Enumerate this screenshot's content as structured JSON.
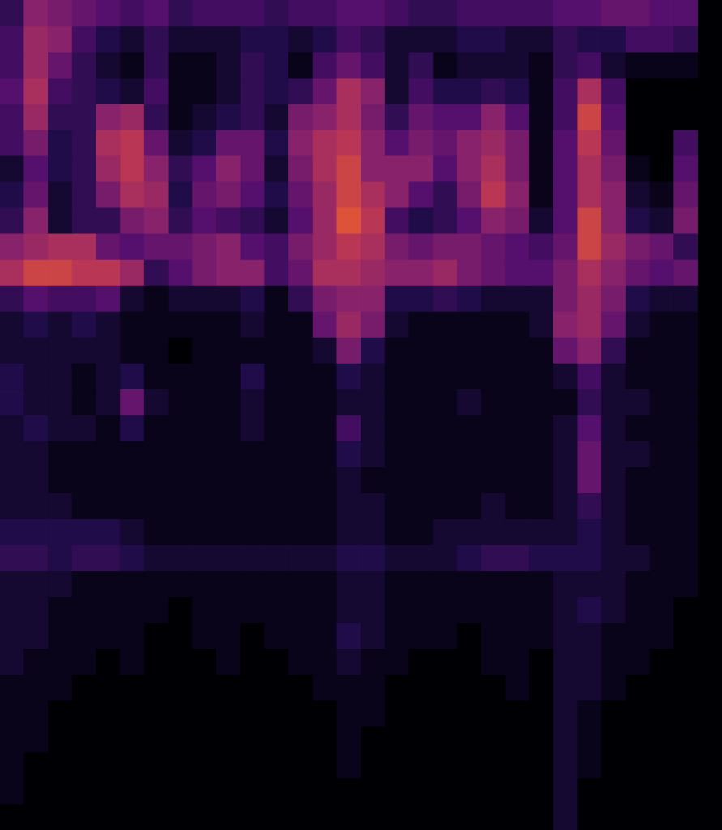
{
  "chart_data": {
    "type": "heatmap",
    "grid": false,
    "tick_labels": false,
    "ylim": [
      0,
      32
    ],
    "zlim": [
      0,
      100
    ],
    "cells": [
      [
        20,
        45,
        40,
        35,
        30,
        25,
        30,
        20,
        25,
        25,
        25,
        20,
        25,
        25,
        30,
        30,
        25,
        20,
        20,
        25,
        25,
        25,
        25,
        30,
        30,
        35,
        35,
        30,
        30,
        0
      ],
      [
        25,
        50,
        45,
        25,
        15,
        10,
        20,
        10,
        10,
        10,
        15,
        15,
        10,
        15,
        25,
        20,
        10,
        10,
        10,
        15,
        15,
        10,
        10,
        20,
        15,
        15,
        25,
        25,
        20,
        0
      ],
      [
        25,
        50,
        35,
        20,
        10,
        5,
        20,
        5,
        5,
        10,
        20,
        15,
        5,
        25,
        35,
        25,
        10,
        20,
        5,
        10,
        10,
        10,
        5,
        20,
        25,
        10,
        5,
        5,
        5,
        0
      ],
      [
        30,
        55,
        25,
        20,
        15,
        10,
        25,
        5,
        5,
        10,
        20,
        15,
        20,
        35,
        55,
        45,
        10,
        25,
        15,
        15,
        20,
        15,
        5,
        25,
        55,
        25,
        0,
        0,
        0,
        0
      ],
      [
        25,
        50,
        20,
        20,
        45,
        50,
        20,
        5,
        10,
        15,
        20,
        10,
        40,
        45,
        55,
        40,
        20,
        35,
        30,
        30,
        45,
        30,
        5,
        25,
        65,
        30,
        0,
        0,
        0,
        0
      ],
      [
        25,
        40,
        15,
        20,
        55,
        60,
        35,
        10,
        15,
        35,
        35,
        15,
        45,
        55,
        60,
        45,
        30,
        40,
        35,
        45,
        50,
        40,
        5,
        30,
        60,
        35,
        0,
        0,
        25,
        0
      ],
      [
        10,
        30,
        15,
        20,
        50,
        60,
        45,
        20,
        30,
        45,
        35,
        10,
        40,
        55,
        65,
        45,
        45,
        45,
        30,
        45,
        55,
        40,
        5,
        30,
        55,
        40,
        5,
        0,
        30,
        0
      ],
      [
        15,
        35,
        10,
        20,
        40,
        55,
        50,
        15,
        35,
        40,
        30,
        15,
        35,
        50,
        65,
        55,
        45,
        30,
        20,
        40,
        60,
        45,
        5,
        30,
        55,
        45,
        10,
        5,
        35,
        0
      ],
      [
        20,
        45,
        10,
        20,
        20,
        40,
        45,
        20,
        30,
        25,
        20,
        10,
        30,
        50,
        70,
        60,
        25,
        15,
        20,
        30,
        45,
        40,
        10,
        30,
        65,
        45,
        15,
        10,
        40,
        0
      ],
      [
        45,
        50,
        55,
        55,
        35,
        30,
        35,
        35,
        40,
        45,
        30,
        25,
        40,
        50,
        60,
        55,
        40,
        35,
        40,
        40,
        35,
        30,
        25,
        35,
        65,
        50,
        40,
        35,
        20,
        0
      ],
      [
        55,
        65,
        65,
        60,
        60,
        50,
        20,
        30,
        40,
        45,
        45,
        25,
        35,
        55,
        55,
        50,
        45,
        45,
        50,
        40,
        35,
        30,
        30,
        40,
        55,
        45,
        35,
        30,
        35,
        0
      ],
      [
        20,
        30,
        25,
        25,
        30,
        10,
        5,
        10,
        10,
        10,
        15,
        5,
        20,
        40,
        45,
        45,
        15,
        15,
        20,
        15,
        10,
        10,
        10,
        40,
        50,
        40,
        15,
        10,
        10,
        0
      ],
      [
        10,
        15,
        10,
        15,
        10,
        5,
        5,
        5,
        5,
        5,
        10,
        5,
        5,
        35,
        50,
        40,
        10,
        5,
        5,
        5,
        5,
        5,
        10,
        45,
        50,
        35,
        10,
        5,
        5,
        0
      ],
      [
        10,
        10,
        10,
        10,
        10,
        5,
        5,
        0,
        5,
        5,
        5,
        5,
        5,
        10,
        40,
        15,
        5,
        5,
        5,
        5,
        5,
        5,
        5,
        35,
        45,
        20,
        5,
        5,
        5,
        0
      ],
      [
        15,
        10,
        10,
        5,
        10,
        15,
        5,
        5,
        5,
        5,
        15,
        5,
        5,
        5,
        15,
        10,
        5,
        5,
        5,
        5,
        5,
        5,
        5,
        10,
        25,
        10,
        5,
        5,
        5,
        0
      ],
      [
        15,
        10,
        10,
        5,
        10,
        35,
        10,
        5,
        5,
        5,
        10,
        5,
        5,
        5,
        10,
        10,
        5,
        5,
        5,
        10,
        5,
        5,
        5,
        5,
        20,
        10,
        10,
        5,
        5,
        0
      ],
      [
        10,
        15,
        10,
        10,
        5,
        15,
        5,
        5,
        5,
        5,
        10,
        5,
        5,
        5,
        25,
        10,
        5,
        5,
        5,
        5,
        5,
        5,
        5,
        10,
        30,
        10,
        5,
        5,
        5,
        0
      ],
      [
        10,
        10,
        5,
        5,
        5,
        5,
        5,
        5,
        5,
        5,
        5,
        5,
        5,
        5,
        15,
        10,
        5,
        5,
        5,
        5,
        5,
        5,
        5,
        10,
        35,
        10,
        10,
        5,
        5,
        0
      ],
      [
        10,
        10,
        5,
        5,
        5,
        5,
        5,
        5,
        5,
        5,
        5,
        5,
        5,
        5,
        10,
        5,
        5,
        5,
        5,
        5,
        5,
        5,
        5,
        10,
        35,
        10,
        5,
        5,
        5,
        0
      ],
      [
        10,
        10,
        10,
        5,
        5,
        5,
        5,
        5,
        5,
        5,
        5,
        5,
        5,
        5,
        10,
        10,
        5,
        5,
        5,
        5,
        10,
        5,
        5,
        10,
        20,
        10,
        5,
        5,
        5,
        0
      ],
      [
        15,
        15,
        15,
        15,
        15,
        10,
        5,
        5,
        5,
        5,
        5,
        5,
        5,
        5,
        10,
        10,
        5,
        5,
        10,
        10,
        10,
        10,
        10,
        10,
        15,
        10,
        5,
        5,
        5,
        0
      ],
      [
        20,
        20,
        15,
        20,
        20,
        15,
        10,
        10,
        10,
        10,
        10,
        10,
        10,
        10,
        15,
        15,
        10,
        10,
        10,
        15,
        20,
        20,
        15,
        15,
        15,
        10,
        10,
        5,
        5,
        0
      ],
      [
        10,
        10,
        10,
        5,
        5,
        5,
        5,
        5,
        5,
        5,
        5,
        5,
        5,
        5,
        10,
        10,
        5,
        5,
        5,
        5,
        5,
        5,
        5,
        10,
        10,
        10,
        5,
        5,
        5,
        0
      ],
      [
        10,
        10,
        5,
        5,
        5,
        5,
        5,
        0,
        5,
        5,
        5,
        5,
        5,
        5,
        10,
        10,
        5,
        5,
        5,
        5,
        5,
        5,
        5,
        10,
        15,
        10,
        5,
        5,
        0,
        0
      ],
      [
        10,
        10,
        5,
        5,
        5,
        5,
        0,
        0,
        5,
        5,
        0,
        5,
        5,
        5,
        15,
        10,
        5,
        5,
        5,
        0,
        5,
        5,
        5,
        10,
        10,
        5,
        5,
        5,
        0,
        0
      ],
      [
        10,
        5,
        5,
        5,
        0,
        5,
        0,
        0,
        0,
        5,
        0,
        0,
        5,
        5,
        10,
        5,
        5,
        0,
        0,
        0,
        5,
        5,
        0,
        10,
        10,
        5,
        5,
        0,
        0,
        0
      ],
      [
        5,
        5,
        5,
        0,
        0,
        0,
        0,
        0,
        0,
        0,
        0,
        0,
        0,
        5,
        5,
        5,
        0,
        0,
        0,
        0,
        0,
        5,
        0,
        10,
        10,
        5,
        0,
        0,
        0,
        0
      ],
      [
        5,
        5,
        0,
        0,
        0,
        0,
        0,
        0,
        0,
        0,
        0,
        0,
        0,
        0,
        5,
        5,
        0,
        0,
        0,
        0,
        0,
        0,
        0,
        10,
        5,
        0,
        0,
        0,
        0,
        0
      ],
      [
        5,
        5,
        0,
        0,
        0,
        0,
        0,
        0,
        0,
        0,
        0,
        0,
        0,
        0,
        5,
        0,
        0,
        0,
        0,
        0,
        0,
        0,
        0,
        10,
        5,
        0,
        0,
        0,
        0,
        0
      ],
      [
        5,
        0,
        0,
        0,
        0,
        0,
        0,
        0,
        0,
        0,
        0,
        0,
        0,
        0,
        5,
        0,
        0,
        0,
        0,
        0,
        0,
        0,
        0,
        10,
        5,
        0,
        0,
        0,
        0,
        0
      ],
      [
        5,
        0,
        0,
        0,
        0,
        0,
        0,
        0,
        0,
        0,
        0,
        0,
        0,
        0,
        0,
        0,
        0,
        0,
        0,
        0,
        0,
        0,
        0,
        10,
        0,
        0,
        0,
        0,
        0,
        0
      ],
      [
        0,
        0,
        0,
        0,
        0,
        0,
        0,
        0,
        0,
        0,
        0,
        0,
        0,
        0,
        0,
        0,
        0,
        0,
        0,
        0,
        0,
        0,
        0,
        10,
        0,
        0,
        0,
        0,
        0,
        0
      ]
    ]
  }
}
